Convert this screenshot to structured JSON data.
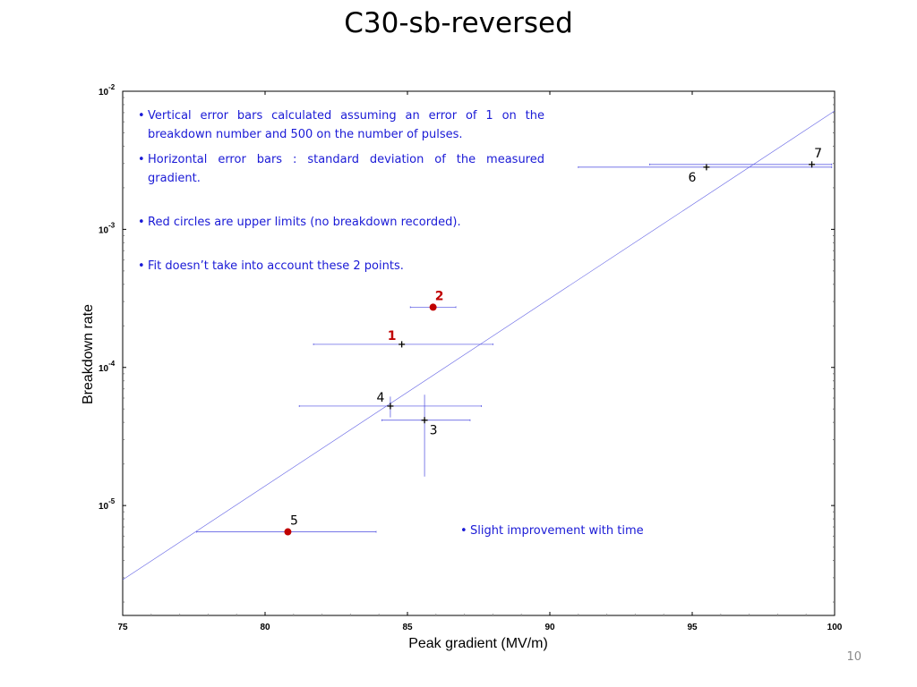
{
  "slide": {
    "title": "C30-sb-reversed",
    "number": "10"
  },
  "notes": [
    "Vertical error bars calculated assuming an error of 1 on the breakdown number and 500  on the number of pulses.",
    "Horizontal error bars : standard deviation of the measured gradient.",
    "Red circles are upper limits (no breakdown recorded).",
    "Fit doesn’t take into account these 2 points.",
    "Slight improvement with time"
  ],
  "colors": {
    "text_blue": "#1a1ad6",
    "red": "#c00000",
    "errorbar": "#4a4ae0",
    "fit_line": "#4a4ae0",
    "axis": "#000000"
  },
  "chart_data": {
    "type": "scatter",
    "title": "",
    "xlabel": "Peak gradient (MV/m)",
    "ylabel": "Breakdown rate",
    "xlim": [
      75,
      100
    ],
    "ylim": [
      1.6e-06,
      0.01
    ],
    "yscale": "log",
    "xticks": [
      75,
      80,
      85,
      90,
      95,
      100
    ],
    "yticks": [
      {
        "value": 0.01,
        "base": "10",
        "exp": "-2"
      },
      {
        "value": 0.001,
        "base": "10",
        "exp": "-3"
      },
      {
        "value": 0.0001,
        "base": "10",
        "exp": "-4"
      },
      {
        "value": 1e-05,
        "base": "10",
        "exp": "-5"
      }
    ],
    "grid": false,
    "points": [
      {
        "label": "1",
        "x": 84.8,
        "y": 0.000147,
        "xerr": [
          81.7,
          88.0
        ],
        "marker": "plus",
        "label_color": "red",
        "label_pos": "upper-left"
      },
      {
        "label": "2",
        "x": 85.9,
        "y": 0.000273,
        "xerr": [
          85.1,
          86.7
        ],
        "marker": "circle",
        "upper_limit": true,
        "label_color": "red",
        "label_pos": "upper-right"
      },
      {
        "label": "3",
        "x": 85.6,
        "y": 4.15e-05,
        "xerr": [
          84.1,
          87.2
        ],
        "yerr": [
          1.62e-05,
          6.35e-05
        ],
        "marker": "plus",
        "label_color": "black",
        "label_pos": "lower-right"
      },
      {
        "label": "4",
        "x": 84.4,
        "y": 5.25e-05,
        "xerr": [
          81.2,
          87.6
        ],
        "yerr": [
          4.35e-05,
          6.15e-05
        ],
        "marker": "plus",
        "label_color": "black",
        "label_pos": "upper-left"
      },
      {
        "label": "5",
        "x": 80.8,
        "y": 6.45e-06,
        "xerr": [
          77.6,
          83.9
        ],
        "marker": "circle",
        "upper_limit": true,
        "label_color": "black",
        "label_pos": "upper-right"
      },
      {
        "label": "6",
        "x": 95.5,
        "y": 0.00282,
        "xerr": [
          91.0,
          99.9
        ],
        "marker": "plus",
        "label_color": "black",
        "label_pos": "lower-left"
      },
      {
        "label": "7",
        "x": 99.2,
        "y": 0.00295,
        "xerr": [
          93.5,
          99.9
        ],
        "marker": "plus",
        "label_color": "black",
        "label_pos": "upper-right"
      }
    ],
    "fit": {
      "x": [
        75,
        100
      ],
      "y": [
        2.9e-06,
        0.0072
      ]
    }
  }
}
